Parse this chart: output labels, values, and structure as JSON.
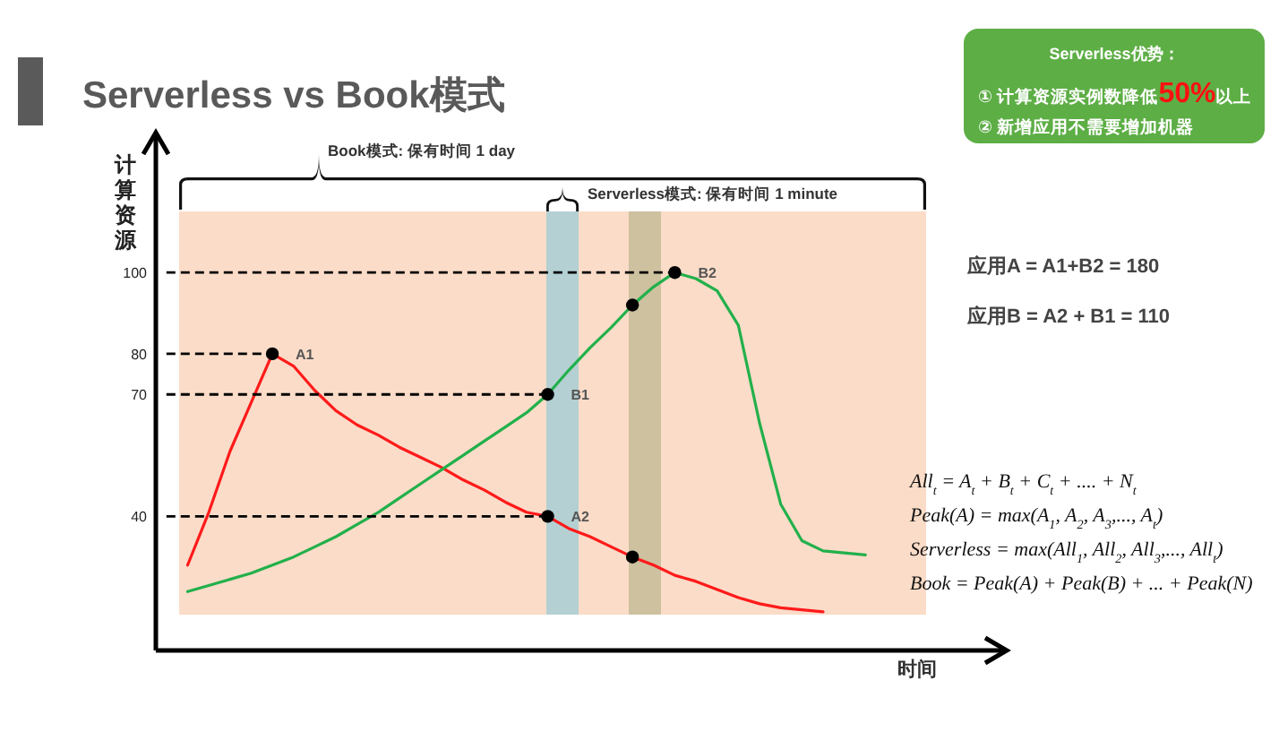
{
  "chart_data": {
    "type": "line",
    "title": "Serverless vs Book模式",
    "xlabel": "时间",
    "ylabel": "计算资源",
    "categories": [
      null,
      null,
      null,
      null,
      null,
      null,
      null,
      null,
      null,
      null,
      null,
      null,
      null,
      null,
      null,
      null,
      null,
      null,
      null,
      null,
      null,
      null,
      null,
      null,
      null,
      null,
      null,
      null,
      null,
      null,
      null,
      null,
      null,
      null,
      null,
      null,
      null,
      null,
      null,
      null
    ],
    "ylim": [
      7,
      134
    ],
    "yticks": [
      40,
      70,
      80,
      100
    ],
    "tick_labels": "y",
    "series": [
      {
        "color": "#ff1a1a",
        "values": [
          null,
          28,
          41,
          56,
          68,
          80,
          77,
          71,
          66,
          62.5,
          60,
          57,
          54.5,
          52,
          49,
          46.5,
          43.5,
          41,
          40,
          37,
          35,
          32.5,
          30,
          28,
          25.5,
          24,
          22,
          20,
          18.5,
          17.5,
          17,
          16.5,
          null,
          null,
          null,
          null,
          null,
          null,
          null,
          null
        ]
      },
      {
        "color": "#22b04b",
        "values": [
          null,
          21.5,
          23,
          24.5,
          26,
          28,
          30,
          32.5,
          35,
          38,
          41,
          44.5,
          48,
          51.5,
          55,
          58.5,
          62,
          65.5,
          70,
          76,
          81.5,
          86.5,
          92,
          96.5,
          100,
          98.5,
          95.5,
          87,
          63,
          43,
          34,
          31.5,
          31,
          30.5,
          null,
          null,
          null,
          null,
          null,
          null
        ]
      },
      {
        "color": "#000000",
        "line_style": "dashed",
        "values": [
          100,
          100,
          100,
          100,
          100,
          100,
          100,
          100,
          100,
          100,
          100,
          100,
          100,
          100,
          100,
          100,
          100,
          100,
          100,
          100,
          100,
          100,
          100,
          100,
          100,
          null,
          null,
          null,
          null,
          null,
          null,
          null,
          null,
          null,
          null,
          null,
          null,
          null,
          null,
          null
        ]
      },
      {
        "color": "#000000",
        "line_style": "dashed",
        "values": [
          80,
          80,
          80,
          80,
          80,
          80,
          null,
          null,
          null,
          null,
          null,
          null,
          null,
          null,
          null,
          null,
          null,
          null,
          null,
          null,
          null,
          null,
          null,
          null,
          null,
          null,
          null,
          null,
          null,
          null,
          null,
          null,
          null,
          null,
          null,
          null,
          null,
          null,
          null,
          null
        ]
      },
      {
        "color": "#000000",
        "line_style": "dashed",
        "values": [
          70,
          70,
          70,
          70,
          70,
          70,
          70,
          70,
          70,
          70,
          70,
          70,
          70,
          70,
          70,
          70,
          70,
          70,
          70,
          null,
          null,
          null,
          null,
          null,
          null,
          null,
          null,
          null,
          null,
          null,
          null,
          null,
          null,
          null,
          null,
          null,
          null,
          null,
          null,
          null
        ]
      },
      {
        "color": "#000000",
        "line_style": "dashed",
        "values": [
          40,
          40,
          40,
          40,
          40,
          40,
          40,
          40,
          40,
          40,
          40,
          40,
          40,
          40,
          40,
          40,
          40,
          40,
          40,
          null,
          null,
          null,
          null,
          null,
          null,
          null,
          null,
          null,
          null,
          null,
          null,
          null,
          null,
          null,
          null,
          null,
          null,
          null,
          null,
          null
        ]
      },
      {
        "type": "scatter",
        "color": "#000000",
        "marker": "circle",
        "values": [
          null,
          null,
          null,
          null,
          null,
          80,
          null,
          null,
          null,
          null,
          null,
          null,
          null,
          null,
          null,
          null,
          null,
          null,
          40,
          null,
          null,
          null,
          30,
          null,
          null,
          null,
          null,
          null,
          null,
          null,
          null,
          null,
          null,
          null,
          null,
          null,
          null,
          null,
          null,
          null
        ]
      },
      {
        "type": "scatter",
        "color": "#000000",
        "marker": "circle",
        "values": [
          null,
          null,
          null,
          null,
          null,
          null,
          null,
          null,
          null,
          null,
          null,
          null,
          null,
          null,
          null,
          null,
          null,
          null,
          70,
          null,
          null,
          null,
          92,
          null,
          100,
          null,
          null,
          null,
          null,
          null,
          null,
          null,
          null,
          null,
          null,
          null,
          null,
          null,
          null,
          null
        ]
      }
    ],
    "annotations": [
      "Book模式: 保有时间 1 day",
      "Serverless模式: 保有时间 1 minute",
      "Serverless优势：",
      "① 计算资源实例数降低**50%**以上",
      "② 新增应用不需要增加机器",
      "应用A = A1+B2 = 180",
      "应用B = A2 + B1 = 110",
      "All$_{t}$ = A$_{t}$ + B$_{t}$ + C$_{t}$ + .... + N$_{t}$",
      "Peak(A) = max(A$_{1}$, A$_{2}$, A$_{3}$,..., A$_{t}$)",
      "Serverless = max(All$_{1}$, All$_{2}$, All$_{3}$,..., All$_{t}$)",
      "Book = Peak(A) + Peak(B) + ... + Peak(N)",
      "A1",
      "B1",
      "A2",
      "B2"
    ]
  }
}
